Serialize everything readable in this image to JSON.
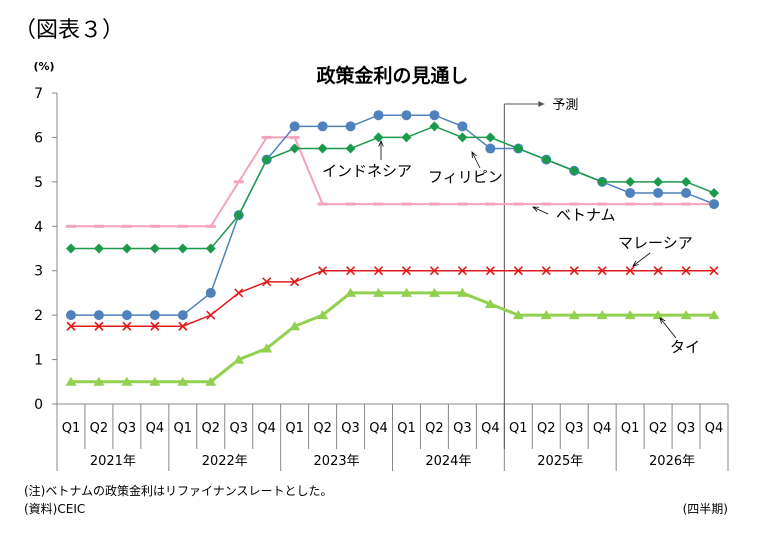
{
  "figure_label": "（図表３）",
  "note": "(注)ベトナムの政策金利はリファイナンスレートとした。",
  "source": "(資料)CEIC",
  "x_unit": "(四半期)",
  "chart_data": {
    "type": "line",
    "title": "政策金利の見通し",
    "ylabel": "(%)",
    "ylim": [
      0,
      7
    ],
    "yticks": [
      0,
      1,
      2,
      3,
      4,
      5,
      6,
      7
    ],
    "grid": false,
    "legend": "none",
    "categories": [
      "Q1",
      "Q2",
      "Q3",
      "Q4",
      "Q1",
      "Q2",
      "Q3",
      "Q4",
      "Q1",
      "Q2",
      "Q3",
      "Q4",
      "Q1",
      "Q2",
      "Q3",
      "Q4",
      "Q1",
      "Q2",
      "Q3",
      "Q4",
      "Q1",
      "Q2",
      "Q3",
      "Q4"
    ],
    "years": [
      "2021年",
      "2022年",
      "2023年",
      "2024年",
      "2025年",
      "2026年"
    ],
    "forecast_label": "予測",
    "forecast_start_index": 16,
    "series": [
      {
        "name": "インドネシア",
        "color": "#1a9a4a",
        "marker": "diamond",
        "values": [
          3.5,
          3.5,
          3.5,
          3.5,
          3.5,
          3.5,
          4.25,
          5.5,
          5.75,
          5.75,
          5.75,
          6.0,
          6.0,
          6.25,
          6.0,
          6.0,
          5.75,
          5.5,
          5.25,
          5.0,
          5.0,
          5.0,
          5.0,
          4.75
        ]
      },
      {
        "name": "フィリピン",
        "color": "#4f81bd",
        "marker": "circle",
        "values": [
          2.0,
          2.0,
          2.0,
          2.0,
          2.0,
          2.5,
          4.25,
          5.5,
          6.25,
          6.25,
          6.25,
          6.5,
          6.5,
          6.5,
          6.25,
          5.75,
          5.75,
          5.5,
          5.25,
          5.0,
          4.75,
          4.75,
          4.75,
          4.5
        ]
      },
      {
        "name": "ベトナム",
        "color": "#f4a3bd",
        "marker": "dash",
        "values": [
          4.0,
          4.0,
          4.0,
          4.0,
          4.0,
          4.0,
          5.0,
          6.0,
          6.0,
          4.5,
          4.5,
          4.5,
          4.5,
          4.5,
          4.5,
          4.5,
          4.5,
          4.5,
          4.5,
          4.5,
          4.5,
          4.5,
          4.5,
          4.5
        ]
      },
      {
        "name": "マレーシア",
        "color": "#e31a1c",
        "marker": "cross",
        "values": [
          1.75,
          1.75,
          1.75,
          1.75,
          1.75,
          2.0,
          2.5,
          2.75,
          2.75,
          3.0,
          3.0,
          3.0,
          3.0,
          3.0,
          3.0,
          3.0,
          3.0,
          3.0,
          3.0,
          3.0,
          3.0,
          3.0,
          3.0,
          3.0
        ]
      },
      {
        "name": "タイ",
        "color": "#92d050",
        "marker": "triangle",
        "values": [
          0.5,
          0.5,
          0.5,
          0.5,
          0.5,
          0.5,
          1.0,
          1.25,
          1.75,
          2.0,
          2.5,
          2.5,
          2.5,
          2.5,
          2.5,
          2.25,
          2.0,
          2.0,
          2.0,
          2.0,
          2.0,
          2.0,
          2.0,
          2.0
        ]
      }
    ]
  }
}
